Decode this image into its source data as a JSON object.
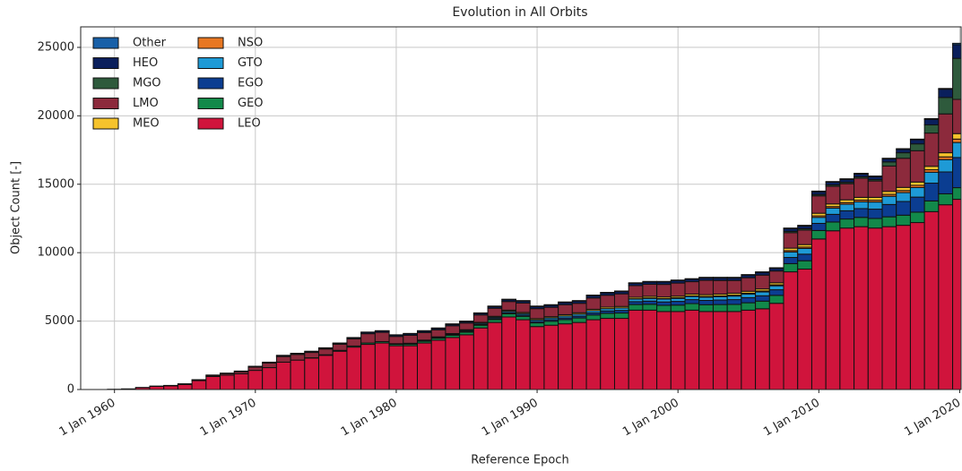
{
  "chart_data": {
    "type": "stacked_bar",
    "title": "Evolution in All Orbits",
    "x_label": "Reference Epoch",
    "y_label": "Object Count [-]",
    "x": [
      1960,
      1961,
      1962,
      1963,
      1964,
      1965,
      1966,
      1967,
      1968,
      1969,
      1970,
      1971,
      1972,
      1973,
      1974,
      1975,
      1976,
      1977,
      1978,
      1979,
      1980,
      1981,
      1982,
      1983,
      1984,
      1985,
      1986,
      1987,
      1988,
      1989,
      1990,
      1991,
      1992,
      1993,
      1994,
      1995,
      1996,
      1997,
      1998,
      1999,
      2000,
      2001,
      2002,
      2003,
      2004,
      2005,
      2006,
      2007,
      2008,
      2009,
      2010,
      2011,
      2012,
      2013,
      2014,
      2015,
      2016,
      2017,
      2018,
      2019,
      2020
    ],
    "series": [
      {
        "name": "LEO",
        "color": "#d0143c",
        "values": [
          20,
          50,
          140,
          230,
          270,
          370,
          650,
          950,
          1050,
          1150,
          1400,
          1600,
          2000,
          2150,
          2300,
          2500,
          2800,
          3100,
          3300,
          3400,
          3200,
          3200,
          3400,
          3600,
          3800,
          4000,
          4500,
          4900,
          5300,
          5100,
          4600,
          4700,
          4800,
          4900,
          5100,
          5200,
          5200,
          5800,
          5800,
          5700,
          5700,
          5800,
          5700,
          5700,
          5700,
          5800,
          5900,
          6300,
          8600,
          8800,
          11000,
          11600,
          11800,
          11900,
          11800,
          11900,
          12000,
          12200,
          13000,
          13500,
          13900
        ]
      },
      {
        "name": "GEO",
        "color": "#12894a",
        "values": [
          0,
          0,
          0,
          0,
          0,
          0,
          0,
          0,
          0,
          0,
          0,
          0,
          0,
          0,
          20,
          40,
          60,
          80,
          100,
          100,
          110,
          120,
          130,
          150,
          170,
          190,
          200,
          220,
          240,
          250,
          270,
          290,
          310,
          330,
          350,
          370,
          390,
          410,
          430,
          450,
          470,
          480,
          500,
          510,
          520,
          540,
          560,
          580,
          600,
          610,
          620,
          640,
          660,
          680,
          700,
          720,
          740,
          760,
          780,
          800,
          850
        ]
      },
      {
        "name": "EGO",
        "color": "#0b3d91",
        "values": [
          0,
          0,
          0,
          0,
          0,
          0,
          0,
          0,
          0,
          0,
          0,
          0,
          0,
          0,
          0,
          0,
          0,
          0,
          0,
          0,
          0,
          0,
          0,
          0,
          0,
          50,
          60,
          70,
          80,
          90,
          100,
          110,
          120,
          130,
          150,
          170,
          190,
          210,
          230,
          250,
          270,
          290,
          310,
          330,
          350,
          370,
          390,
          410,
          450,
          480,
          520,
          560,
          600,
          640,
          680,
          900,
          1000,
          1100,
          1300,
          1600,
          2200
        ]
      },
      {
        "name": "GTO",
        "color": "#1e9ad6",
        "values": [
          0,
          0,
          0,
          0,
          0,
          0,
          0,
          0,
          0,
          0,
          0,
          0,
          0,
          0,
          0,
          0,
          0,
          0,
          0,
          0,
          20,
          30,
          40,
          50,
          60,
          70,
          80,
          90,
          100,
          110,
          120,
          130,
          140,
          150,
          160,
          170,
          180,
          190,
          200,
          210,
          220,
          230,
          240,
          250,
          260,
          270,
          280,
          290,
          400,
          420,
          440,
          460,
          480,
          500,
          520,
          600,
          650,
          700,
          800,
          900,
          1100
        ]
      },
      {
        "name": "NSO",
        "color": "#e87722",
        "values": [
          0,
          0,
          0,
          0,
          0,
          0,
          0,
          0,
          0,
          0,
          0,
          0,
          0,
          0,
          0,
          0,
          0,
          0,
          0,
          0,
          0,
          0,
          0,
          0,
          0,
          0,
          0,
          0,
          0,
          0,
          0,
          0,
          0,
          0,
          0,
          0,
          0,
          20,
          30,
          30,
          40,
          40,
          50,
          50,
          60,
          60,
          70,
          70,
          100,
          100,
          110,
          110,
          120,
          120,
          130,
          140,
          150,
          160,
          180,
          200,
          250
        ]
      },
      {
        "name": "MEO",
        "color": "#f6c32c",
        "values": [
          0,
          0,
          0,
          0,
          0,
          0,
          0,
          0,
          0,
          0,
          0,
          0,
          0,
          0,
          0,
          0,
          0,
          0,
          0,
          0,
          20,
          30,
          40,
          50,
          60,
          60,
          70,
          70,
          80,
          80,
          90,
          90,
          100,
          100,
          100,
          110,
          110,
          110,
          120,
          120,
          120,
          130,
          130,
          130,
          140,
          140,
          150,
          150,
          180,
          180,
          190,
          190,
          200,
          200,
          210,
          220,
          230,
          240,
          250,
          300,
          400
        ]
      },
      {
        "name": "LMO",
        "color": "#8c2a3c",
        "values": [
          0,
          0,
          0,
          10,
          20,
          30,
          50,
          80,
          110,
          150,
          240,
          330,
          410,
          410,
          390,
          420,
          450,
          520,
          680,
          680,
          530,
          580,
          550,
          510,
          570,
          490,
          540,
          590,
          630,
          690,
          730,
          690,
          730,
          690,
          830,
          870,
          920,
          850,
          880,
          920,
          960,
          910,
          1050,
          1000,
          940,
          990,
          1010,
          860,
          1130,
          1060,
          1270,
          1290,
          1180,
          1400,
          1200,
          1850,
          2130,
          2290,
          2430,
          2840,
          2500
        ]
      },
      {
        "name": "MGO",
        "color": "#2e5a3c",
        "values": [
          0,
          0,
          0,
          0,
          0,
          0,
          0,
          0,
          0,
          0,
          0,
          0,
          0,
          0,
          0,
          0,
          0,
          0,
          0,
          0,
          0,
          0,
          0,
          0,
          0,
          0,
          0,
          0,
          0,
          0,
          0,
          0,
          0,
          0,
          0,
          0,
          0,
          0,
          0,
          0,
          0,
          0,
          0,
          0,
          0,
          0,
          0,
          0,
          100,
          100,
          100,
          100,
          100,
          100,
          100,
          300,
          400,
          500,
          600,
          1200,
          3000
        ]
      },
      {
        "name": "HEO",
        "color": "#0a1f5c",
        "values": [
          0,
          0,
          10,
          10,
          10,
          20,
          20,
          30,
          40,
          50,
          60,
          70,
          70,
          70,
          70,
          70,
          70,
          80,
          100,
          100,
          100,
          100,
          100,
          100,
          100,
          100,
          110,
          120,
          130,
          140,
          150,
          150,
          160,
          160,
          170,
          170,
          170,
          170,
          170,
          180,
          180,
          180,
          180,
          190,
          190,
          190,
          200,
          200,
          200,
          200,
          200,
          200,
          210,
          210,
          210,
          220,
          250,
          300,
          400,
          600,
          1000
        ]
      },
      {
        "name": "Other",
        "color": "#1860a8",
        "values": [
          0,
          0,
          0,
          0,
          0,
          0,
          0,
          0,
          0,
          0,
          0,
          0,
          20,
          20,
          20,
          20,
          20,
          20,
          20,
          20,
          20,
          40,
          40,
          40,
          40,
          40,
          40,
          40,
          40,
          40,
          40,
          40,
          40,
          40,
          40,
          40,
          40,
          40,
          40,
          40,
          40,
          40,
          40,
          40,
          40,
          40,
          40,
          40,
          40,
          50,
          50,
          50,
          50,
          50,
          50,
          50,
          50,
          50,
          60,
          60,
          100
        ]
      }
    ],
    "xlim": [
      1957.6,
      2020.1
    ],
    "xticks": [
      {
        "value": 1960,
        "label": "1 Jan 1960"
      },
      {
        "value": 1970,
        "label": "1 Jan 1970"
      },
      {
        "value": 1980,
        "label": "1 Jan 1980"
      },
      {
        "value": 1990,
        "label": "1 Jan 1990"
      },
      {
        "value": 2000,
        "label": "1 Jan 2000"
      },
      {
        "value": 2010,
        "label": "1 Jan 2010"
      },
      {
        "value": 2020,
        "label": "1 Jan 2020"
      }
    ],
    "ylim": [
      0,
      26500
    ],
    "yticks": [
      0,
      5000,
      10000,
      15000,
      20000,
      25000
    ],
    "grid": true,
    "legend": "upper left"
  }
}
